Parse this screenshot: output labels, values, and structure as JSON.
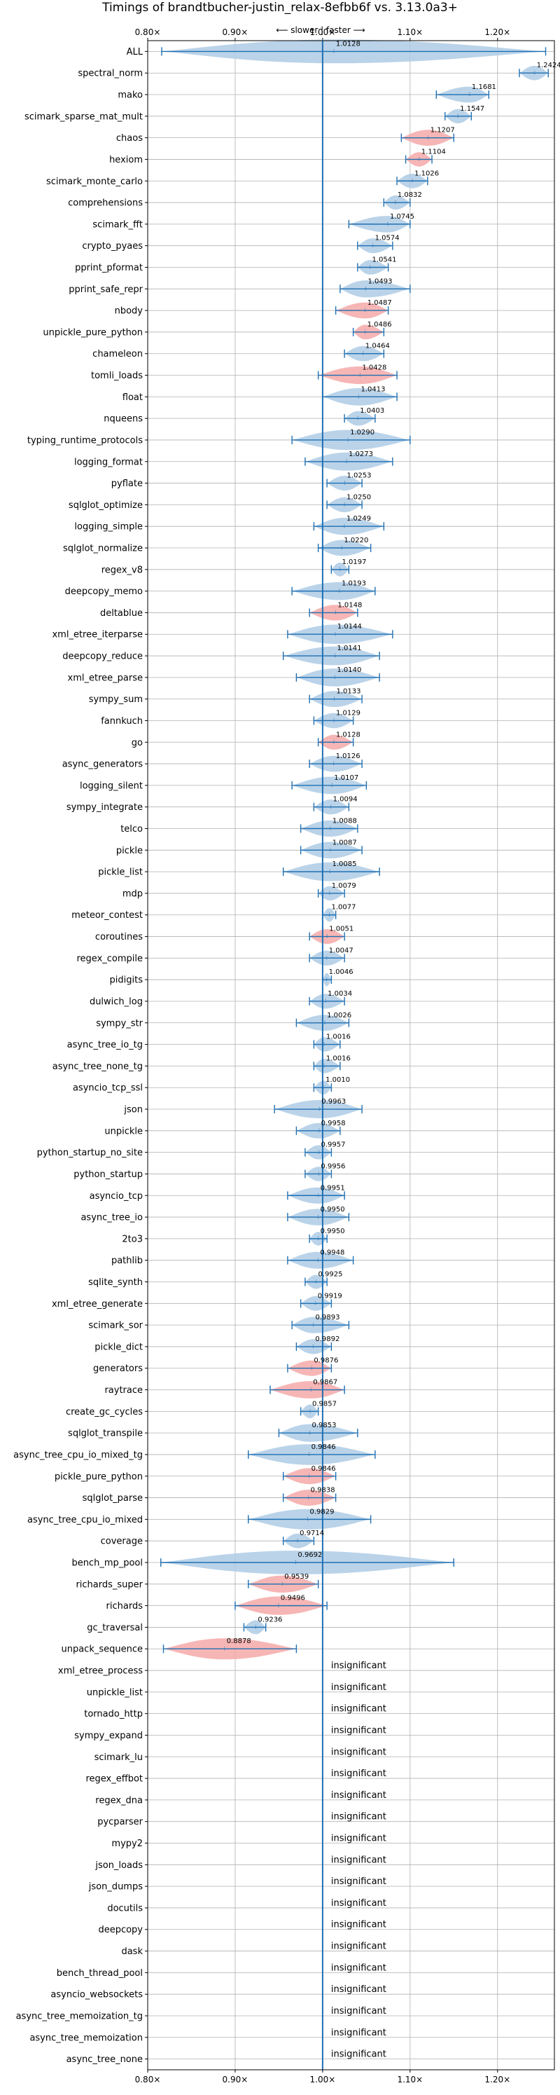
{
  "chart_data": {
    "type": "violin",
    "title": "Timings of brandtbucher-justin_relax-8efbb6f vs. 3.13.0a3+",
    "direction_label": "⟵ slower | faster ⟶",
    "xlabel": "",
    "ylabel": "",
    "xlim": [
      0.8,
      1.265
    ],
    "xticks": [
      0.8,
      0.9,
      1.0,
      1.1,
      1.2
    ],
    "xtick_labels": [
      "0.80×",
      "0.90×",
      "1.00×",
      "1.10×",
      "1.20×"
    ],
    "grid": true,
    "insignificant_text": "insignificant",
    "colors": {
      "faster": "#aecbe5",
      "slower": "#f4a9a8",
      "line": "#1f6fb2",
      "grid": "#b0b0b0"
    },
    "benchmarks": [
      {
        "name": "ALL",
        "value": 1.0128,
        "label": "1.0128",
        "min": 0.816,
        "max": 1.255,
        "status": "faster"
      },
      {
        "name": "spectral_norm",
        "value": 1.2424,
        "label": "1.2424",
        "min": 1.225,
        "max": 1.258,
        "status": "faster"
      },
      {
        "name": "mako",
        "value": 1.1681,
        "label": "1.1681",
        "min": 1.13,
        "max": 1.19,
        "status": "faster"
      },
      {
        "name": "scimark_sparse_mat_mult",
        "value": 1.1547,
        "label": "1.1547",
        "min": 1.14,
        "max": 1.17,
        "status": "faster"
      },
      {
        "name": "chaos",
        "value": 1.1207,
        "label": "1.1207",
        "min": 1.09,
        "max": 1.15,
        "status": "slower"
      },
      {
        "name": "hexiom",
        "value": 1.1104,
        "label": "1.1104",
        "min": 1.095,
        "max": 1.125,
        "status": "slower"
      },
      {
        "name": "scimark_monte_carlo",
        "value": 1.1026,
        "label": "1.1026",
        "min": 1.085,
        "max": 1.12,
        "status": "faster"
      },
      {
        "name": "comprehensions",
        "value": 1.0832,
        "label": "1.0832",
        "min": 1.07,
        "max": 1.1,
        "status": "faster"
      },
      {
        "name": "scimark_fft",
        "value": 1.0745,
        "label": "1.0745",
        "min": 1.03,
        "max": 1.1,
        "status": "faster"
      },
      {
        "name": "crypto_pyaes",
        "value": 1.0574,
        "label": "1.0574",
        "min": 1.04,
        "max": 1.08,
        "status": "faster"
      },
      {
        "name": "pprint_pformat",
        "value": 1.0541,
        "label": "1.0541",
        "min": 1.04,
        "max": 1.075,
        "status": "faster"
      },
      {
        "name": "pprint_safe_repr",
        "value": 1.0493,
        "label": "1.0493",
        "min": 1.02,
        "max": 1.1,
        "status": "faster"
      },
      {
        "name": "nbody",
        "value": 1.0487,
        "label": "1.0487",
        "min": 1.015,
        "max": 1.075,
        "status": "slower"
      },
      {
        "name": "unpickle_pure_python",
        "value": 1.0486,
        "label": "1.0486",
        "min": 1.035,
        "max": 1.07,
        "status": "slower"
      },
      {
        "name": "chameleon",
        "value": 1.0464,
        "label": "1.0464",
        "min": 1.025,
        "max": 1.07,
        "status": "faster"
      },
      {
        "name": "tomli_loads",
        "value": 1.0428,
        "label": "1.0428",
        "min": 0.995,
        "max": 1.085,
        "status": "slower"
      },
      {
        "name": "float",
        "value": 1.0413,
        "label": "1.0413",
        "min": 1.0,
        "max": 1.085,
        "status": "faster"
      },
      {
        "name": "nqueens",
        "value": 1.0403,
        "label": "1.0403",
        "min": 1.025,
        "max": 1.06,
        "status": "faster"
      },
      {
        "name": "typing_runtime_protocols",
        "value": 1.029,
        "label": "1.0290",
        "min": 0.965,
        "max": 1.1,
        "status": "faster"
      },
      {
        "name": "logging_format",
        "value": 1.0273,
        "label": "1.0273",
        "min": 0.98,
        "max": 1.08,
        "status": "faster"
      },
      {
        "name": "pyflate",
        "value": 1.0253,
        "label": "1.0253",
        "min": 1.005,
        "max": 1.045,
        "status": "faster"
      },
      {
        "name": "sqlglot_optimize",
        "value": 1.025,
        "label": "1.0250",
        "min": 1.005,
        "max": 1.045,
        "status": "faster"
      },
      {
        "name": "logging_simple",
        "value": 1.0249,
        "label": "1.0249",
        "min": 0.99,
        "max": 1.07,
        "status": "faster"
      },
      {
        "name": "sqlglot_normalize",
        "value": 1.022,
        "label": "1.0220",
        "min": 0.995,
        "max": 1.055,
        "status": "faster"
      },
      {
        "name": "regex_v8",
        "value": 1.0197,
        "label": "1.0197",
        "min": 1.01,
        "max": 1.03,
        "status": "faster"
      },
      {
        "name": "deepcopy_memo",
        "value": 1.0193,
        "label": "1.0193",
        "min": 0.965,
        "max": 1.06,
        "status": "faster"
      },
      {
        "name": "deltablue",
        "value": 1.0148,
        "label": "1.0148",
        "min": 0.985,
        "max": 1.04,
        "status": "slower"
      },
      {
        "name": "xml_etree_iterparse",
        "value": 1.0144,
        "label": "1.0144",
        "min": 0.96,
        "max": 1.08,
        "status": "faster"
      },
      {
        "name": "deepcopy_reduce",
        "value": 1.0141,
        "label": "1.0141",
        "min": 0.955,
        "max": 1.065,
        "status": "faster"
      },
      {
        "name": "xml_etree_parse",
        "value": 1.014,
        "label": "1.0140",
        "min": 0.97,
        "max": 1.065,
        "status": "faster"
      },
      {
        "name": "sympy_sum",
        "value": 1.0133,
        "label": "1.0133",
        "min": 0.985,
        "max": 1.045,
        "status": "faster"
      },
      {
        "name": "fannkuch",
        "value": 1.0129,
        "label": "1.0129",
        "min": 0.99,
        "max": 1.035,
        "status": "faster"
      },
      {
        "name": "go",
        "value": 1.0128,
        "label": "1.0128",
        "min": 0.995,
        "max": 1.035,
        "status": "slower"
      },
      {
        "name": "async_generators",
        "value": 1.0126,
        "label": "1.0126",
        "min": 0.985,
        "max": 1.045,
        "status": "faster"
      },
      {
        "name": "logging_silent",
        "value": 1.0107,
        "label": "1.0107",
        "min": 0.965,
        "max": 1.05,
        "status": "faster"
      },
      {
        "name": "sympy_integrate",
        "value": 1.0094,
        "label": "1.0094",
        "min": 0.99,
        "max": 1.03,
        "status": "faster"
      },
      {
        "name": "telco",
        "value": 1.0088,
        "label": "1.0088",
        "min": 0.975,
        "max": 1.04,
        "status": "faster"
      },
      {
        "name": "pickle",
        "value": 1.0087,
        "label": "1.0087",
        "min": 0.975,
        "max": 1.045,
        "status": "faster"
      },
      {
        "name": "pickle_list",
        "value": 1.0085,
        "label": "1.0085",
        "min": 0.955,
        "max": 1.065,
        "status": "faster"
      },
      {
        "name": "mdp",
        "value": 1.0079,
        "label": "1.0079",
        "min": 0.995,
        "max": 1.025,
        "status": "faster"
      },
      {
        "name": "meteor_contest",
        "value": 1.0077,
        "label": "1.0077",
        "min": 1.0,
        "max": 1.015,
        "status": "faster"
      },
      {
        "name": "coroutines",
        "value": 1.0051,
        "label": "1.0051",
        "min": 0.985,
        "max": 1.025,
        "status": "slower"
      },
      {
        "name": "regex_compile",
        "value": 1.0047,
        "label": "1.0047",
        "min": 0.985,
        "max": 1.025,
        "status": "faster"
      },
      {
        "name": "pidigits",
        "value": 1.0046,
        "label": "1.0046",
        "min": 1.0,
        "max": 1.01,
        "status": "faster"
      },
      {
        "name": "dulwich_log",
        "value": 1.0034,
        "label": "1.0034",
        "min": 0.985,
        "max": 1.025,
        "status": "faster"
      },
      {
        "name": "sympy_str",
        "value": 1.0026,
        "label": "1.0026",
        "min": 0.97,
        "max": 1.03,
        "status": "faster"
      },
      {
        "name": "async_tree_io_tg",
        "value": 1.0016,
        "label": "1.0016",
        "min": 0.99,
        "max": 1.02,
        "status": "faster"
      },
      {
        "name": "async_tree_none_tg",
        "value": 1.0016,
        "label": "1.0016",
        "min": 0.99,
        "max": 1.02,
        "status": "faster"
      },
      {
        "name": "asyncio_tcp_ssl",
        "value": 1.001,
        "label": "1.0010",
        "min": 0.99,
        "max": 1.01,
        "status": "faster"
      },
      {
        "name": "json",
        "value": 0.9963,
        "label": "0.9963",
        "min": 0.945,
        "max": 1.045,
        "status": "faster"
      },
      {
        "name": "unpickle",
        "value": 0.9958,
        "label": "0.9958",
        "min": 0.97,
        "max": 1.02,
        "status": "faster"
      },
      {
        "name": "python_startup_no_site",
        "value": 0.9957,
        "label": "0.9957",
        "min": 0.98,
        "max": 1.01,
        "status": "faster"
      },
      {
        "name": "python_startup",
        "value": 0.9956,
        "label": "0.9956",
        "min": 0.98,
        "max": 1.01,
        "status": "faster"
      },
      {
        "name": "asyncio_tcp",
        "value": 0.9951,
        "label": "0.9951",
        "min": 0.96,
        "max": 1.025,
        "status": "faster"
      },
      {
        "name": "async_tree_io",
        "value": 0.995,
        "label": "0.9950",
        "min": 0.96,
        "max": 1.03,
        "status": "faster"
      },
      {
        "name": "2to3",
        "value": 0.995,
        "label": "0.9950",
        "min": 0.985,
        "max": 1.005,
        "status": "faster"
      },
      {
        "name": "pathlib",
        "value": 0.9948,
        "label": "0.9948",
        "min": 0.96,
        "max": 1.035,
        "status": "faster"
      },
      {
        "name": "sqlite_synth",
        "value": 0.9925,
        "label": "0.9925",
        "min": 0.98,
        "max": 1.005,
        "status": "faster"
      },
      {
        "name": "xml_etree_generate",
        "value": 0.9919,
        "label": "0.9919",
        "min": 0.975,
        "max": 1.01,
        "status": "faster"
      },
      {
        "name": "scimark_sor",
        "value": 0.9893,
        "label": "0.9893",
        "min": 0.965,
        "max": 1.03,
        "status": "faster"
      },
      {
        "name": "pickle_dict",
        "value": 0.9892,
        "label": "0.9892",
        "min": 0.97,
        "max": 1.01,
        "status": "faster"
      },
      {
        "name": "generators",
        "value": 0.9876,
        "label": "0.9876",
        "min": 0.96,
        "max": 1.01,
        "status": "slower"
      },
      {
        "name": "raytrace",
        "value": 0.9867,
        "label": "0.9867",
        "min": 0.94,
        "max": 1.025,
        "status": "slower"
      },
      {
        "name": "create_gc_cycles",
        "value": 0.9857,
        "label": "0.9857",
        "min": 0.975,
        "max": 0.995,
        "status": "faster"
      },
      {
        "name": "sqlglot_transpile",
        "value": 0.9853,
        "label": "0.9853",
        "min": 0.95,
        "max": 1.04,
        "status": "faster"
      },
      {
        "name": "async_tree_cpu_io_mixed_tg",
        "value": 0.9846,
        "label": "0.9846",
        "min": 0.915,
        "max": 1.06,
        "status": "faster"
      },
      {
        "name": "pickle_pure_python",
        "value": 0.9846,
        "label": "0.9846",
        "min": 0.955,
        "max": 1.015,
        "status": "slower"
      },
      {
        "name": "sqlglot_parse",
        "value": 0.9838,
        "label": "0.9838",
        "min": 0.955,
        "max": 1.015,
        "status": "slower"
      },
      {
        "name": "async_tree_cpu_io_mixed",
        "value": 0.9829,
        "label": "0.9829",
        "min": 0.915,
        "max": 1.055,
        "status": "faster"
      },
      {
        "name": "coverage",
        "value": 0.9714,
        "label": "0.9714",
        "min": 0.955,
        "max": 0.99,
        "status": "faster"
      },
      {
        "name": "bench_mp_pool",
        "value": 0.9692,
        "label": "0.9692",
        "min": 0.815,
        "max": 1.15,
        "status": "faster"
      },
      {
        "name": "richards_super",
        "value": 0.9539,
        "label": "0.9539",
        "min": 0.915,
        "max": 0.995,
        "status": "slower"
      },
      {
        "name": "richards",
        "value": 0.9496,
        "label": "0.9496",
        "min": 0.9,
        "max": 1.005,
        "status": "slower"
      },
      {
        "name": "gc_traversal",
        "value": 0.9236,
        "label": "0.9236",
        "min": 0.91,
        "max": 0.935,
        "status": "faster"
      },
      {
        "name": "unpack_sequence",
        "value": 0.8878,
        "label": "0.8878",
        "min": 0.818,
        "max": 0.97,
        "status": "slower"
      },
      {
        "name": "xml_etree_process",
        "status": "insignificant"
      },
      {
        "name": "unpickle_list",
        "status": "insignificant"
      },
      {
        "name": "tornado_http",
        "status": "insignificant"
      },
      {
        "name": "sympy_expand",
        "status": "insignificant"
      },
      {
        "name": "scimark_lu",
        "status": "insignificant"
      },
      {
        "name": "regex_effbot",
        "status": "insignificant"
      },
      {
        "name": "regex_dna",
        "status": "insignificant"
      },
      {
        "name": "pycparser",
        "status": "insignificant"
      },
      {
        "name": "mypy2",
        "status": "insignificant"
      },
      {
        "name": "json_loads",
        "status": "insignificant"
      },
      {
        "name": "json_dumps",
        "status": "insignificant"
      },
      {
        "name": "docutils",
        "status": "insignificant"
      },
      {
        "name": "deepcopy",
        "status": "insignificant"
      },
      {
        "name": "dask",
        "status": "insignificant"
      },
      {
        "name": "bench_thread_pool",
        "status": "insignificant"
      },
      {
        "name": "asyncio_websockets",
        "status": "insignificant"
      },
      {
        "name": "async_tree_memoization_tg",
        "status": "insignificant"
      },
      {
        "name": "async_tree_memoization",
        "status": "insignificant"
      },
      {
        "name": "async_tree_none",
        "status": "insignificant"
      }
    ]
  }
}
